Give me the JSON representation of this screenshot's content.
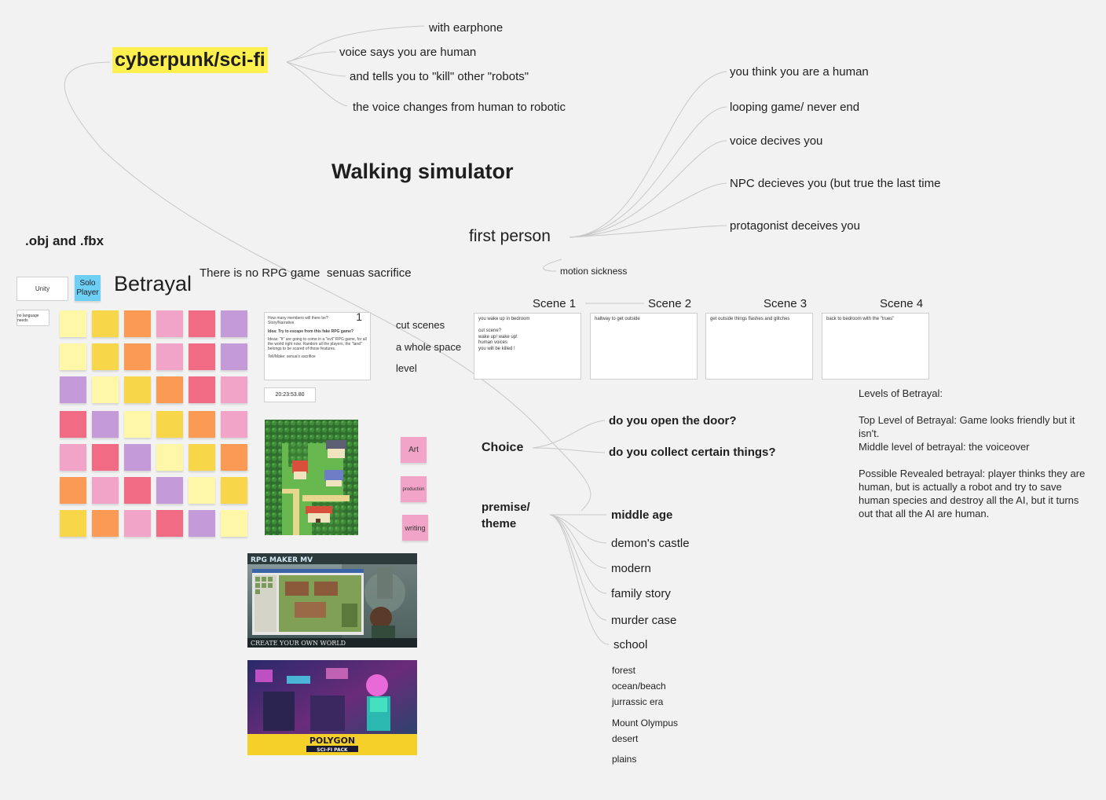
{
  "board": {
    "cyberpunk_title": "cyberpunk/sci-fi",
    "cyberpunk_items": [
      "with earphone",
      "voice says you are human",
      "and tells you to \"kill\" other \"robots\"",
      "the voice changes from human to robotic"
    ],
    "walking_sim": "Walking simulator",
    "first_person": "first person",
    "first_person_items": [
      "you think you are a human",
      "looping game/ never end",
      "voice decives you",
      "NPC decieves you (but true the last time",
      "protagonist deceives you"
    ],
    "motion_sickness": "motion sickness",
    "obj_fbx": ".obj and .fbx",
    "unity": "Unity",
    "solo_player": "Solo Player",
    "betrayal": "Betrayal",
    "no_rpg": "There is no RPG game",
    "senuas": "senuas sacrifice",
    "card_number": "1",
    "card_time": "20:23:53.80",
    "mid_items": [
      "cut scenes",
      "a whole space",
      "level"
    ],
    "tags": [
      "Art",
      "production",
      "writing"
    ],
    "scenes": [
      {
        "title": "Scene 1",
        "text": "you wake up in bedroom\n\ncut scene?\nwake up! wake up!\nhuman voices\nyou will be killed !"
      },
      {
        "title": "Scene 2",
        "text": "hallway to get outside"
      },
      {
        "title": "Scene 3",
        "text": "get outside things flashes and glitches"
      },
      {
        "title": "Scene 4",
        "text": "back to bedroom with the \"trues\""
      }
    ],
    "betrayal_levels": [
      "Levels of Betrayal:",
      "Top Level of Betrayal: Game looks friendly but it isn't.",
      "Middle level of betrayal: the voiceover",
      "Possible Revealed betrayal: player thinks they are human, but is actually a robot and try to save human species and destroy all the AI, but it turns out that all the AI are human."
    ],
    "choice": "Choice",
    "choice_items": [
      "do you open the door?",
      "do you collect certain things?"
    ],
    "premise_line1": "premise/",
    "premise_line2": "theme",
    "themes": [
      "middle age",
      "demon's castle",
      "modern",
      "family story",
      "murder case",
      "school"
    ],
    "more_themes": [
      "forest",
      "ocean/beach",
      "jurrassic era",
      "Mount Olympus",
      "desert",
      "plains"
    ],
    "image_captions": {
      "rpg_maker": "CREATE YOUR OWN WORLD",
      "polygon": "POLYGON",
      "polygon_sub": "SCI-FI PACK"
    }
  },
  "colors": {
    "highlight": "#fdf04f",
    "sticky": [
      "#f26b85",
      "#c59ad9",
      "#fff7a8",
      "#f7d64a",
      "#fb9a55",
      "#f1a3c8"
    ],
    "tag": "#f1a3c8",
    "solo_player": "#6dcff6"
  }
}
